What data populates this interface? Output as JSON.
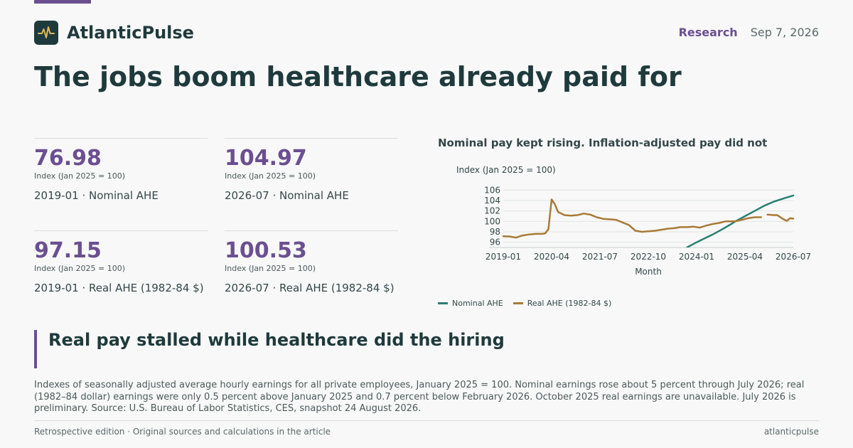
{
  "brand": {
    "name": "AtlanticPulse",
    "logo_icon": "pulse-icon"
  },
  "header": {
    "section": "Research",
    "date": "Sep 7, 2026"
  },
  "headline": "The jobs boom healthcare already paid for",
  "stats": [
    {
      "value": "76.98",
      "unit": "Index (Jan 2025 = 100)",
      "label": "2019-01 · Nominal AHE"
    },
    {
      "value": "104.97",
      "unit": "Index (Jan 2025 = 100)",
      "label": "2026-07 · Nominal AHE"
    },
    {
      "value": "97.15",
      "unit": "Index (Jan 2025 = 100)",
      "label": "2019-01 · Real AHE (1982-84 $)"
    },
    {
      "value": "100.53",
      "unit": "Index (Jan 2025 = 100)",
      "label": "2026-07 · Real AHE (1982-84 $)"
    }
  ],
  "chart_title": "Nominal pay kept rising. Inflation-adjusted pay did not",
  "chart_data": {
    "type": "line",
    "title": "Nominal pay kept rising. Inflation-adjusted pay did not",
    "ylabel": "Index (Jan 2025 = 100)",
    "xlabel": "Month",
    "xticks": [
      "2019-01",
      "2020-04",
      "2021-07",
      "2022-10",
      "2024-01",
      "2025-04",
      "2026-07"
    ],
    "yticks": [
      96,
      98,
      100,
      102,
      104,
      106
    ],
    "ylim": [
      95,
      107
    ],
    "x_start": "2019-01",
    "x_end": "2026-07",
    "grid": true,
    "legend_position": "bottom",
    "series": [
      {
        "name": "Nominal AHE",
        "color": "#2a7f72",
        "points": [
          [
            "2023-10",
            95.0
          ],
          [
            "2024-01",
            96.0
          ],
          [
            "2024-03",
            96.6
          ],
          [
            "2024-06",
            97.5
          ],
          [
            "2024-09",
            98.5
          ],
          [
            "2024-12",
            99.6
          ],
          [
            "2025-01",
            100.0
          ],
          [
            "2025-04",
            101.0
          ],
          [
            "2025-07",
            102.0
          ],
          [
            "2025-10",
            103.0
          ],
          [
            "2026-01",
            103.8
          ],
          [
            "2026-04",
            104.4
          ],
          [
            "2026-07",
            104.97
          ]
        ]
      },
      {
        "name": "Real AHE (1982-84 $)",
        "color": "#a97a35",
        "points": [
          [
            "2019-01",
            97.15
          ],
          [
            "2019-03",
            97.1
          ],
          [
            "2019-05",
            96.9
          ],
          [
            "2019-07",
            97.3
          ],
          [
            "2019-09",
            97.5
          ],
          [
            "2019-11",
            97.6
          ],
          [
            "2020-01",
            97.6
          ],
          [
            "2020-02",
            97.7
          ],
          [
            "2020-03",
            98.5
          ],
          [
            "2020-04",
            104.2
          ],
          [
            "2020-05",
            103.3
          ],
          [
            "2020-06",
            101.8
          ],
          [
            "2020-08",
            101.2
          ],
          [
            "2020-10",
            101.1
          ],
          [
            "2020-12",
            101.2
          ],
          [
            "2021-02",
            101.5
          ],
          [
            "2021-04",
            101.3
          ],
          [
            "2021-06",
            100.8
          ],
          [
            "2021-08",
            100.5
          ],
          [
            "2021-10",
            100.4
          ],
          [
            "2021-12",
            100.3
          ],
          [
            "2022-02",
            99.8
          ],
          [
            "2022-04",
            99.3
          ],
          [
            "2022-06",
            98.2
          ],
          [
            "2022-08",
            98.0
          ],
          [
            "2022-10",
            98.1
          ],
          [
            "2022-12",
            98.2
          ],
          [
            "2023-02",
            98.4
          ],
          [
            "2023-04",
            98.6
          ],
          [
            "2023-06",
            98.7
          ],
          [
            "2023-08",
            98.9
          ],
          [
            "2023-10",
            98.9
          ],
          [
            "2023-12",
            99.0
          ],
          [
            "2024-02",
            98.8
          ],
          [
            "2024-04",
            99.2
          ],
          [
            "2024-06",
            99.5
          ],
          [
            "2024-08",
            99.7
          ],
          [
            "2024-10",
            100.0
          ],
          [
            "2024-12",
            100.0
          ],
          [
            "2025-01",
            100.0
          ],
          [
            "2025-03",
            100.3
          ],
          [
            "2025-05",
            100.6
          ],
          [
            "2025-07",
            100.8
          ],
          [
            "2025-09",
            100.8
          ],
          null,
          [
            "2025-11",
            101.3
          ],
          [
            "2026-01",
            101.2
          ],
          [
            "2026-02",
            101.2
          ],
          [
            "2026-04",
            100.4
          ],
          [
            "2026-05",
            100.1
          ],
          [
            "2026-06",
            100.6
          ],
          [
            "2026-07",
            100.53
          ]
        ]
      }
    ]
  },
  "quote": "Real pay stalled while healthcare did the hiring",
  "note": "Indexes of seasonally adjusted average hourly earnings for all private employees, January 2025 = 100. Nominal earnings rose about 5 percent through July 2026; real (1982–84 dollar) earnings were only 0.5 percent above January 2025 and 0.7 percent below February 2026. October 2025 real earnings are unavailable. July 2026 is preliminary. Source: U.S. Bureau of Labor Statistics, CES, snapshot 24 August 2026.",
  "footer": {
    "left": "Retrospective edition · Original sources and calculations in the article",
    "right": "atlanticpulse"
  }
}
